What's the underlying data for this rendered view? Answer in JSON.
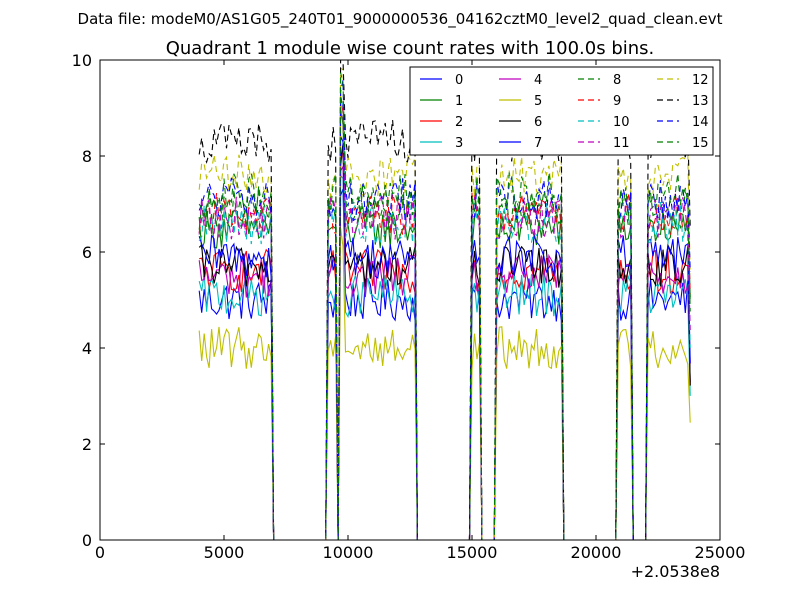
{
  "header": {
    "suptitle": "Data file: modeM0/AS1G05_240T01_9000000536_04162cztM0_level2_quad_clean.evt"
  },
  "chart_data": {
    "type": "line",
    "title": "Quadrant 1 module wise count rates with 100.0s bins.",
    "xlabel": "",
    "ylabel": "",
    "xlim": [
      0,
      25000
    ],
    "ylim": [
      0,
      10
    ],
    "x_ticks": [
      "0",
      "5000",
      "10000",
      "15000",
      "20000",
      "25000"
    ],
    "y_ticks": [
      "0",
      "2",
      "4",
      "6",
      "8",
      "10"
    ],
    "x_offset_label": "+2.0538e8",
    "grid": false,
    "legend_position": "top-right",
    "legend_columns": 4,
    "time_segments": [
      {
        "start": 4000,
        "end": 6900,
        "step": 100
      },
      {
        "start": 9200,
        "end": 9500,
        "step": 100
      },
      {
        "start": 9700,
        "end": 12700,
        "step": 100
      },
      {
        "start": 15000,
        "end": 15300,
        "step": 100
      },
      {
        "start": 16000,
        "end": 18600,
        "step": 100
      },
      {
        "start": 20900,
        "end": 21400,
        "step": 100
      },
      {
        "start": 22100,
        "end": 23800,
        "step": 100
      }
    ],
    "zero_gaps": [
      [
        7000,
        9100
      ],
      [
        9600,
        9600
      ],
      [
        12800,
        14900
      ],
      [
        15400,
        15900
      ],
      [
        18700,
        20800
      ],
      [
        21500,
        22000
      ]
    ],
    "series": [
      {
        "name": "0",
        "color": "#0000ff",
        "style": "solid",
        "mean": 5.0
      },
      {
        "name": "1",
        "color": "#008000",
        "style": "solid",
        "mean": 6.5
      },
      {
        "name": "2",
        "color": "#ff0000",
        "style": "solid",
        "mean": 5.6
      },
      {
        "name": "3",
        "color": "#00bfbf",
        "style": "solid",
        "mean": 5.1
      },
      {
        "name": "4",
        "color": "#bf00bf",
        "style": "solid",
        "mean": 5.5
      },
      {
        "name": "5",
        "color": "#bfbf00",
        "style": "solid",
        "mean": 4.0
      },
      {
        "name": "6",
        "color": "#000000",
        "style": "solid",
        "mean": 5.7
      },
      {
        "name": "7",
        "color": "#0000ff",
        "style": "solid",
        "mean": 5.9
      },
      {
        "name": "8",
        "color": "#008000",
        "style": "dashed",
        "mean": 6.9
      },
      {
        "name": "9",
        "color": "#ff0000",
        "style": "dashed",
        "mean": 6.8
      },
      {
        "name": "10",
        "color": "#00bfbf",
        "style": "dashed",
        "mean": 6.6
      },
      {
        "name": "11",
        "color": "#bf00bf",
        "style": "dashed",
        "mean": 6.7
      },
      {
        "name": "12",
        "color": "#bfbf00",
        "style": "dashed",
        "mean": 7.6
      },
      {
        "name": "13",
        "color": "#000000",
        "style": "dashed",
        "mean": 8.3
      },
      {
        "name": "14",
        "color": "#0000ff",
        "style": "dashed",
        "mean": 7.1
      },
      {
        "name": "15",
        "color": "#008000",
        "style": "dashed",
        "mean": 7.2
      }
    ]
  }
}
